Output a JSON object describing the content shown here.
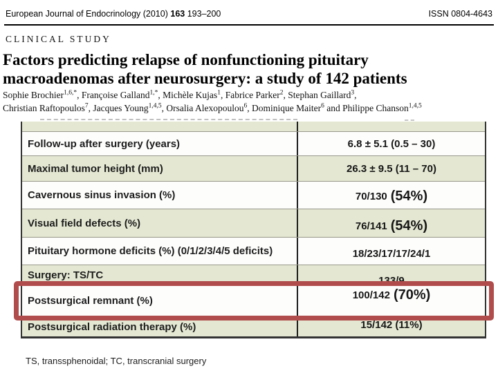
{
  "journal": {
    "name_and_year": "European Journal of Endocrinology (2010)",
    "volume": "163",
    "pages": "193–200",
    "issn": "ISSN 0804-4643"
  },
  "category": "CLINICAL STUDY",
  "title": {
    "line1": "Factors predicting relapse of nonfunctioning pituitary",
    "line2": "macroadenomas after neurosurgery: a study of 142 patients"
  },
  "authors": {
    "line1": [
      {
        "name": "Sophie Brochier",
        "sup": "1,6,*"
      },
      {
        "name": ", Françoise Galland",
        "sup": "1,*"
      },
      {
        "name": ", Michèle Kujas",
        "sup": "1"
      },
      {
        "name": ", Fabrice Parker",
        "sup": "2"
      },
      {
        "name": ", Stephan Gaillard",
        "sup": "3"
      }
    ],
    "line1_tail": ",",
    "line2": [
      {
        "name": "Christian Raftopoulos",
        "sup": "7"
      },
      {
        "name": ", Jacques Young",
        "sup": "1,4,5"
      },
      {
        "name": ", Orsalia Alexopoulou",
        "sup": "6"
      },
      {
        "name": ", Dominique Maiter",
        "sup": "6"
      },
      {
        "name": " and Philippe Chanson",
        "sup": "1,4,5"
      }
    ]
  },
  "table": {
    "rows": [
      {
        "label": "Follow-up after surgery (years)",
        "value": "6.8 ± 5.1 (0.5 – 30)"
      },
      {
        "label": "Maximal tumor height (mm)",
        "value": "26.3 ± 9.5 (11 – 70)"
      },
      {
        "label": "Cavernous sinus invasion (%)",
        "value": "70/130",
        "value_big": "(54%)"
      },
      {
        "label": "Visual field defects (%)",
        "value": "76/141",
        "value_big": "(54%)"
      },
      {
        "label": "Pituitary hormone deficits (%) (0/1/2/3/4/5 deficits)",
        "value": "18/23/17/17/24/1"
      },
      {
        "label": "Surgery: TS/TC",
        "value": "133/9"
      },
      {
        "label": "Postsurgical remnant (%)",
        "value": "100/142",
        "value_big": "(70%)"
      },
      {
        "label": "Postsurgical radiation therapy (%)",
        "value": "15/142 (11%)"
      }
    ],
    "footnote": "TS, transsphenoidal; TC, transcranial surgery"
  },
  "colors": {
    "row_green": "#e4e8d2",
    "highlight_red": "#b14c4c"
  }
}
